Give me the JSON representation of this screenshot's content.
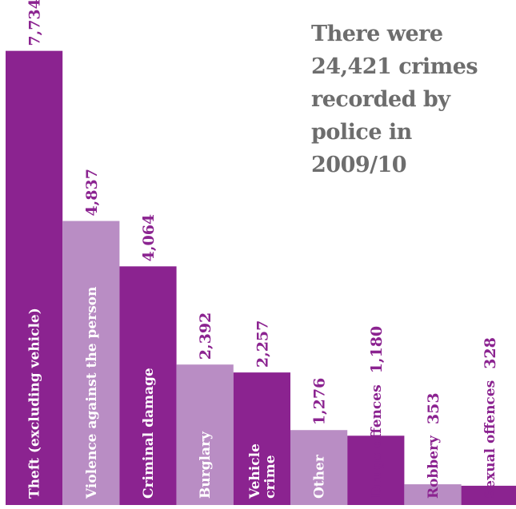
{
  "chart_data": {
    "type": "bar",
    "title": "There were 24,421 crimes recorded by police in 2009/10",
    "title_lines": [
      "There were",
      "24,421 crimes",
      "recorded by",
      "police in",
      "2009/10"
    ],
    "xlabel": "",
    "ylabel": "",
    "ylim": [
      0,
      8600
    ],
    "grid": false,
    "legend": "none",
    "colors": {
      "dark": "#8b2390",
      "light": "#b98dc4",
      "value_text": "#8b2390",
      "label_text": "#ffffff",
      "title_text": "#6d6d6d"
    },
    "categories": [
      {
        "label": "Theft (excluding vehicle)",
        "lines": [
          "Theft (excluding vehicle)"
        ],
        "value": 7734,
        "value_label": "7,734",
        "shade": "dark"
      },
      {
        "label": "Violence against the person",
        "lines": [
          "Violence against the person"
        ],
        "value": 4837,
        "value_label": "4,837",
        "shade": "light"
      },
      {
        "label": "Criminal damage",
        "lines": [
          "Criminal damage"
        ],
        "value": 4064,
        "value_label": "4,064",
        "shade": "dark"
      },
      {
        "label": "Burglary",
        "lines": [
          "Burglary"
        ],
        "value": 2392,
        "value_label": "2,392",
        "shade": "light"
      },
      {
        "label": "Vehicle crime",
        "lines": [
          "Vehicle",
          "crime"
        ],
        "value": 2257,
        "value_label": "2,257",
        "shade": "dark"
      },
      {
        "label": "Other",
        "lines": [
          "Other"
        ],
        "value": 1276,
        "value_label": "1,276",
        "shade": "light"
      },
      {
        "label": "Drugs offences",
        "lines": [
          "Drugs offences"
        ],
        "value": 1180,
        "value_label": "1,180",
        "shade": "dark"
      },
      {
        "label": "Robbery",
        "lines": [
          "Robbery"
        ],
        "value": 353,
        "value_label": "353",
        "shade": "light"
      },
      {
        "label": "Sexual offences",
        "lines": [
          "Sexual offences"
        ],
        "value": 328,
        "value_label": "328",
        "shade": "dark"
      }
    ]
  }
}
